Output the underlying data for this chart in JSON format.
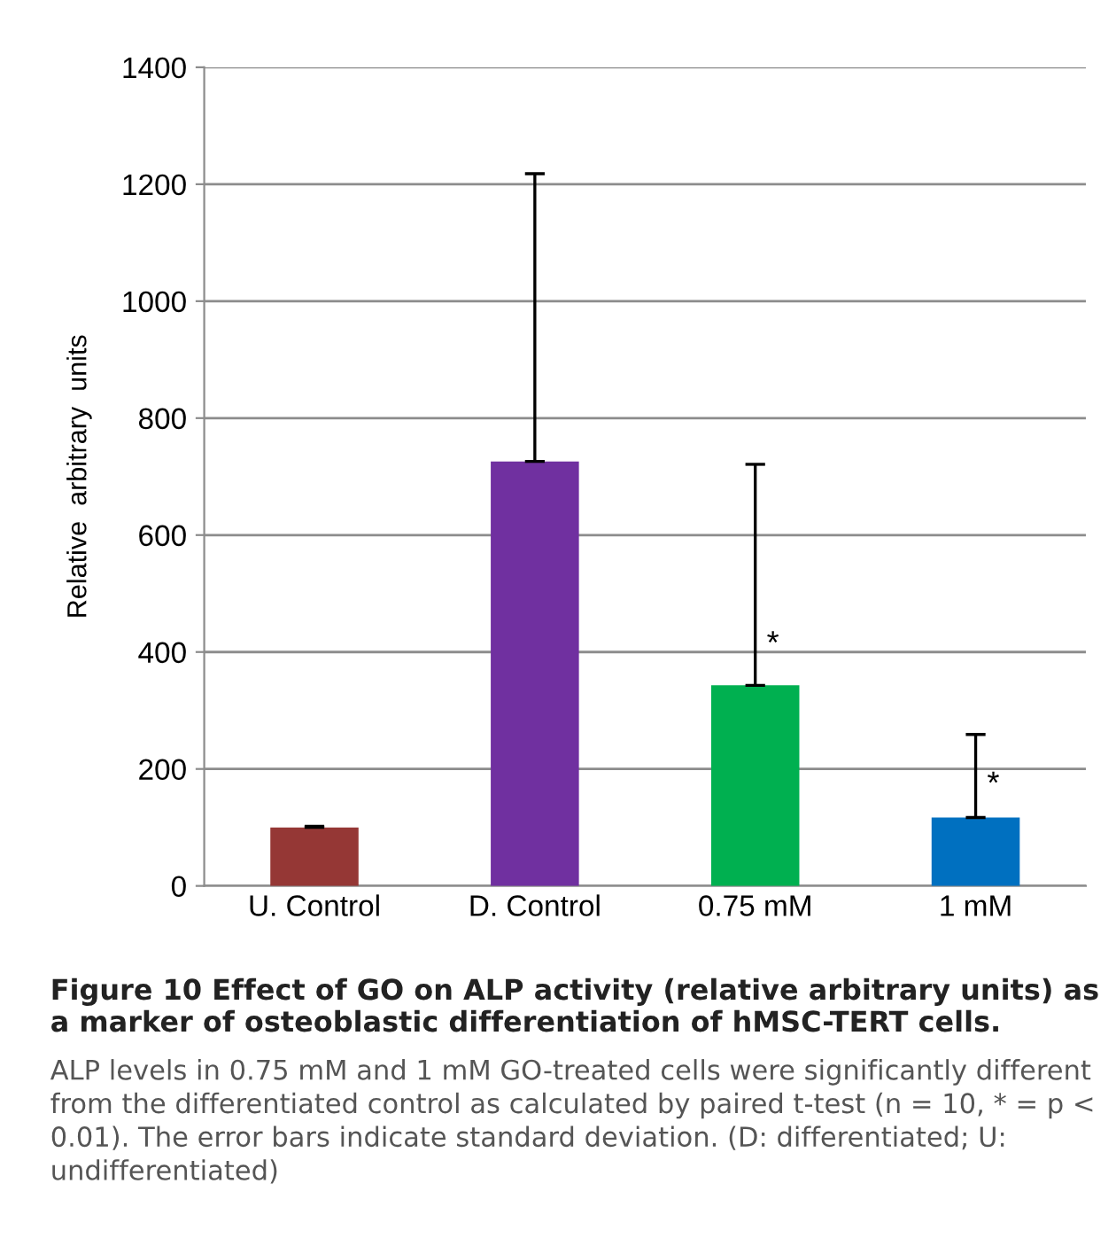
{
  "chart_data": {
    "type": "bar",
    "title": "Figure 10 Effect of GO on ALP activity (relative arbitrary units) as a marker of osteoblastic differentiation of hMSC-TERT cells.",
    "ylabel": "Relative  arbitrary  units",
    "categories": [
      "U. Control",
      "D. Control",
      "0.75 mM",
      "1 mM"
    ],
    "values": [
      100,
      726,
      343,
      117
    ],
    "colors": [
      "#953735",
      "#7030a0",
      "#00b050",
      "#0070c0"
    ],
    "errors": [
      [
        100,
        102
      ],
      [
        726,
        1218
      ],
      [
        343,
        721
      ],
      [
        117,
        259
      ]
    ],
    "ylim": [
      0,
      1400
    ],
    "yticks": [
      0,
      200,
      400,
      600,
      800,
      1000,
      1200,
      1400
    ],
    "grid": "y",
    "annotations": [
      {
        "text": "*",
        "x": "0.75 mM",
        "y": 412
      },
      {
        "text": "*",
        "x": "1 mM",
        "y": 172
      },
      "ALP levels in 0.75 mM and 1 mM GO-treated cells were significantly different from the differentiated control as calculated by paired t-test (n = 10, * = p < 0.01). The error bars indicate standard deviation. (D: differentiated; U: undifferentiated)"
    ]
  }
}
